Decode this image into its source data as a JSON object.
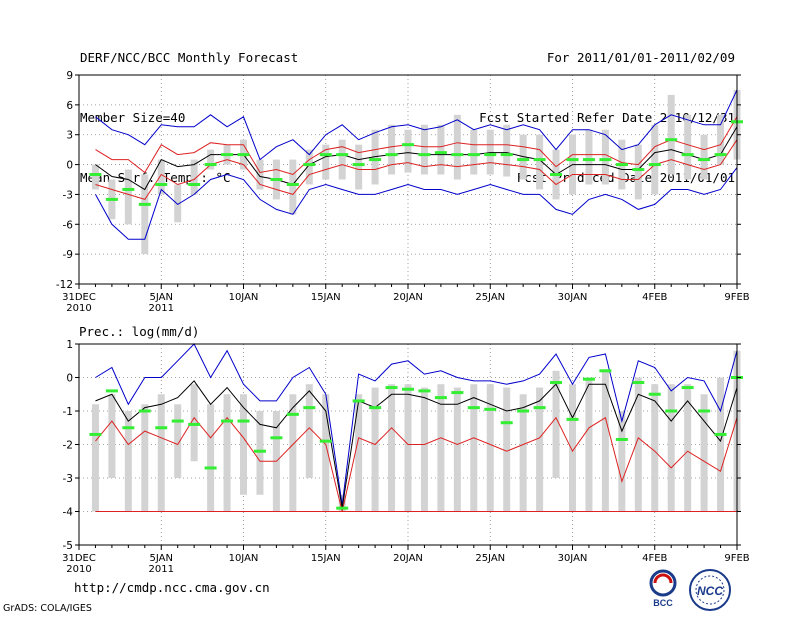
{
  "header": {
    "left": [
      "DERF/NCC/BCC Monthly Forecast",
      "Member Size=40",
      "Mean Surf. Temp.: °C"
    ],
    "right": [
      "For 2011/01/01-2011/02/09",
      "Fcst Started Refer Date 2010/12/31",
      "Fcst Produced Date 2011/01/01"
    ]
  },
  "footer": {
    "url": "http://cmdp.ncc.cma.gov.cn",
    "grads": "GrADS: COLA/IGES",
    "logo_bcc": "BCC",
    "logo_ncc": "NCC"
  },
  "colors": {
    "box": "#d3d3d3",
    "observed": "#33ee33",
    "mean": "#000000",
    "spread": "#dd2222",
    "envelope": "#0000cc",
    "grid": "#888888"
  },
  "x_ticks": [
    {
      "day": 0,
      "label": "31DEC",
      "sub": "2010"
    },
    {
      "day": 5,
      "label": "5JAN",
      "sub": "2011"
    },
    {
      "day": 10,
      "label": "10JAN",
      "sub": ""
    },
    {
      "day": 15,
      "label": "15JAN",
      "sub": ""
    },
    {
      "day": 20,
      "label": "20JAN",
      "sub": ""
    },
    {
      "day": 25,
      "label": "25JAN",
      "sub": ""
    },
    {
      "day": 30,
      "label": "30JAN",
      "sub": ""
    },
    {
      "day": 35,
      "label": "4FEB",
      "sub": ""
    },
    {
      "day": 40,
      "label": "9FEB",
      "sub": ""
    }
  ],
  "chart_data": [
    {
      "type": "box-line",
      "title": "",
      "ylabel": "",
      "ylim": [
        -12,
        9
      ],
      "yticks": [
        9,
        6,
        3,
        0,
        -3,
        -6,
        -9,
        -12
      ],
      "x": [
        1,
        2,
        3,
        4,
        5,
        6,
        7,
        8,
        9,
        10,
        11,
        12,
        13,
        14,
        15,
        16,
        17,
        18,
        19,
        20,
        21,
        22,
        23,
        24,
        25,
        26,
        27,
        28,
        29,
        30,
        31,
        32,
        33,
        34,
        35,
        36,
        37,
        38,
        39,
        40
      ],
      "box_low": [
        -2.5,
        -5.5,
        -6.0,
        -9.0,
        -3.0,
        -5.8,
        -3.0,
        -0.5,
        0.0,
        -0.5,
        -2.5,
        -3.5,
        -5.0,
        -2.0,
        -1.5,
        -1.5,
        -2.5,
        -2.0,
        -1.0,
        -0.8,
        -1.0,
        -1.0,
        -1.5,
        -1.0,
        -1.0,
        -1.2,
        -1.5,
        -2.5,
        -3.5,
        -3.0,
        -2.0,
        -2.0,
        -2.5,
        -3.5,
        -3.0,
        -1.0,
        -1.5,
        -1.5,
        0.0,
        0.5
      ],
      "box_high": [
        0.0,
        -1.5,
        -0.5,
        -1.0,
        0.5,
        -2.0,
        0.5,
        1.5,
        2.0,
        2.5,
        0.5,
        0.5,
        0.5,
        1.5,
        2.0,
        2.5,
        2.0,
        3.5,
        4.0,
        3.5,
        4.0,
        4.0,
        5.0,
        3.5,
        3.5,
        4.0,
        3.0,
        3.0,
        1.5,
        3.0,
        3.5,
        3.5,
        2.5,
        2.0,
        4.0,
        7.0,
        5.0,
        3.0,
        5.0,
        7.5
      ],
      "observed": [
        -1.0,
        -3.5,
        -2.5,
        -4.0,
        -2.0,
        null,
        -2.0,
        0.0,
        1.0,
        1.0,
        null,
        -1.5,
        -2.0,
        0.0,
        1.0,
        1.0,
        0.0,
        0.5,
        1.0,
        2.0,
        1.0,
        1.2,
        1.0,
        1.0,
        1.0,
        1.0,
        0.5,
        0.5,
        -1.0,
        0.5,
        0.5,
        0.5,
        0.0,
        -0.5,
        0.0,
        2.5,
        1.0,
        0.5,
        1.0,
        4.3
      ],
      "envelope_high": [
        4.8,
        3.5,
        3.0,
        2.0,
        4.0,
        3.8,
        3.8,
        5.0,
        3.8,
        4.8,
        0.5,
        1.8,
        2.5,
        1.0,
        3.0,
        4.0,
        2.5,
        3.2,
        3.8,
        4.0,
        3.5,
        3.8,
        4.5,
        3.5,
        4.0,
        3.5,
        4.0,
        3.5,
        1.5,
        3.5,
        3.5,
        3.0,
        1.5,
        2.0,
        4.0,
        5.0,
        4.5,
        4.0,
        4.0,
        7.5
      ],
      "spread_high": [
        1.5,
        0.5,
        0.5,
        -0.8,
        2.0,
        1.0,
        1.2,
        2.2,
        2.0,
        2.0,
        -0.8,
        -0.5,
        -1.0,
        0.5,
        1.5,
        1.8,
        1.2,
        1.5,
        1.8,
        2.0,
        1.8,
        1.8,
        2.2,
        2.0,
        2.0,
        2.0,
        1.8,
        1.5,
        -0.2,
        1.0,
        1.0,
        1.0,
        0.2,
        0.0,
        1.8,
        2.5,
        2.0,
        1.5,
        2.0,
        4.8
      ],
      "mean": [
        0.0,
        -1.2,
        -1.5,
        -2.5,
        0.5,
        -0.2,
        0.0,
        1.0,
        1.0,
        1.0,
        -1.2,
        -1.5,
        -2.0,
        0.0,
        0.8,
        1.0,
        0.5,
        0.8,
        1.0,
        1.2,
        1.0,
        1.0,
        1.0,
        1.0,
        1.2,
        1.2,
        0.8,
        0.5,
        -1.0,
        0.0,
        0.0,
        0.0,
        -0.5,
        -0.5,
        1.2,
        1.5,
        1.0,
        0.5,
        1.0,
        3.8
      ],
      "spread_low": [
        -2.0,
        -2.5,
        -3.0,
        -3.5,
        -1.0,
        -2.0,
        -1.5,
        0.0,
        0.5,
        0.0,
        -2.0,
        -2.5,
        -3.0,
        -1.0,
        -0.5,
        0.0,
        -0.5,
        -0.5,
        0.0,
        0.2,
        -0.2,
        0.0,
        -0.2,
        0.0,
        0.2,
        0.0,
        -0.2,
        -0.5,
        -2.0,
        -1.0,
        -1.0,
        -1.0,
        -1.5,
        -1.5,
        0.0,
        0.5,
        0.0,
        -0.5,
        0.0,
        2.5
      ],
      "envelope_low": [
        -3.0,
        -6.0,
        -7.5,
        -7.5,
        -2.5,
        -4.0,
        -3.0,
        -1.5,
        -1.0,
        -1.5,
        -3.5,
        -4.5,
        -5.0,
        -2.5,
        -2.0,
        -2.5,
        -3.0,
        -3.0,
        -2.5,
        -2.0,
        -2.5,
        -2.5,
        -3.0,
        -2.5,
        -2.0,
        -2.5,
        -3.0,
        -3.0,
        -4.5,
        -5.0,
        -3.5,
        -3.0,
        -3.5,
        -4.5,
        -4.0,
        -2.5,
        -2.5,
        -3.0,
        -2.5,
        -0.3
      ]
    },
    {
      "type": "box-line",
      "title": "Prec.: log(mm/d)",
      "ylabel": "",
      "ylim": [
        -5,
        1
      ],
      "yticks": [
        1,
        0,
        -1,
        -2,
        -3,
        -4,
        -5
      ],
      "x": [
        1,
        2,
        3,
        4,
        5,
        6,
        7,
        8,
        9,
        10,
        11,
        12,
        13,
        14,
        15,
        16,
        17,
        18,
        19,
        20,
        21,
        22,
        23,
        24,
        25,
        26,
        27,
        28,
        29,
        30,
        31,
        32,
        33,
        34,
        35,
        36,
        37,
        38,
        39,
        40
      ],
      "box_low": [
        -4.0,
        -3.0,
        -4.0,
        -4.0,
        -4.0,
        -3.0,
        -2.5,
        -4.0,
        -4.0,
        -3.5,
        -3.5,
        -4.0,
        -4.0,
        -3.0,
        -4.0,
        -4.0,
        -4.0,
        -4.0,
        -4.0,
        -4.0,
        -4.0,
        -4.0,
        -4.0,
        -4.0,
        -4.0,
        -4.0,
        -4.0,
        -4.0,
        -3.0,
        -4.0,
        -4.0,
        -4.0,
        -4.0,
        -4.0,
        -4.0,
        -4.0,
        -4.0,
        -4.0,
        -4.0,
        -4.0
      ],
      "box_high": [
        -0.8,
        -0.5,
        -1.0,
        -0.8,
        -0.5,
        -0.8,
        -0.2,
        -0.8,
        -0.5,
        -0.5,
        -1.0,
        -1.0,
        -0.5,
        -0.2,
        -0.5,
        -3.5,
        -0.5,
        -0.3,
        -0.2,
        -0.2,
        -0.3,
        -0.2,
        -0.3,
        -0.2,
        -0.2,
        -0.3,
        -0.5,
        -0.3,
        0.2,
        -0.2,
        0.0,
        0.2,
        -1.0,
        0.0,
        -0.2,
        -0.2,
        -0.2,
        -0.5,
        0.0,
        0.8
      ],
      "observed": [
        -1.7,
        -0.4,
        -1.5,
        -1.0,
        -1.5,
        -1.3,
        -1.4,
        -2.7,
        -1.3,
        -1.3,
        -2.2,
        -1.8,
        -1.1,
        -0.9,
        -1.9,
        -3.9,
        -0.7,
        -0.9,
        -0.3,
        -0.35,
        -0.4,
        -0.6,
        -0.45,
        -0.9,
        -0.95,
        -1.35,
        -1.0,
        -0.9,
        -0.15,
        -1.25,
        -0.05,
        0.2,
        -1.85,
        -0.15,
        -0.5,
        -1.0,
        -0.3,
        -1.0,
        -1.7,
        0.0
      ],
      "envelope_high": [
        0.0,
        0.3,
        -0.8,
        0.0,
        0.0,
        0.5,
        1.0,
        0.0,
        0.8,
        -0.2,
        -0.7,
        -0.7,
        0.0,
        0.3,
        -0.5,
        -3.8,
        0.1,
        -0.1,
        0.4,
        0.5,
        0.1,
        0.2,
        0.0,
        -0.1,
        -0.1,
        -0.2,
        -0.1,
        0.1,
        0.7,
        -0.2,
        0.6,
        0.7,
        -1.3,
        0.5,
        0.3,
        -0.4,
        0.0,
        -0.1,
        -1.0,
        0.8
      ],
      "mean": [
        -0.7,
        -0.5,
        -1.3,
        -0.9,
        -0.8,
        -0.6,
        -0.1,
        -0.8,
        -0.3,
        -0.9,
        -1.4,
        -1.5,
        -0.9,
        -0.4,
        -1.0,
        -3.9,
        -0.7,
        -0.9,
        -0.5,
        -0.5,
        -0.6,
        -0.8,
        -0.8,
        -0.6,
        -0.8,
        -1.0,
        -0.9,
        -0.7,
        -0.2,
        -1.2,
        -0.2,
        -0.2,
        -1.6,
        -0.5,
        -0.7,
        -1.3,
        -0.7,
        -1.3,
        -1.9,
        -0.3
      ],
      "spread_low": [
        -1.9,
        -1.3,
        -2.0,
        -1.6,
        -1.8,
        -2.0,
        -1.2,
        -1.8,
        -1.2,
        -1.8,
        -2.5,
        -2.5,
        -2.0,
        -1.5,
        -2.0,
        -4.0,
        -1.8,
        -2.0,
        -1.5,
        -2.0,
        -2.0,
        -1.8,
        -2.0,
        -1.8,
        -2.0,
        -2.2,
        -2.0,
        -1.8,
        -1.2,
        -2.2,
        -1.5,
        -1.2,
        -3.1,
        -1.8,
        -2.2,
        -2.7,
        -2.2,
        -2.5,
        -2.8,
        -1.2
      ],
      "floor": -4.0
    }
  ]
}
